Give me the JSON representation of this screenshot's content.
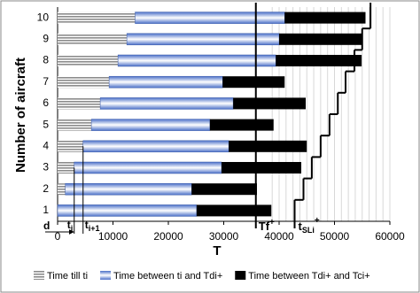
{
  "chart_data": {
    "type": "stacked-barh",
    "ylabel": "Number of aircraft",
    "xlabel": "T",
    "categories": [
      "1",
      "2",
      "3",
      "4",
      "5",
      "6",
      "7",
      "8",
      "9",
      "10"
    ],
    "series": [
      {
        "name": "Time till ti",
        "color": "#9a9a9a",
        "values": [
          0,
          1400,
          3000,
          4600,
          6100,
          7700,
          9300,
          10900,
          12500,
          14000
        ]
      },
      {
        "name": "Time between ti and Tdi+",
        "color": "#5b7fd0",
        "values": [
          25100,
          22800,
          26600,
          26300,
          21400,
          24000,
          20500,
          28500,
          27500,
          27000
        ]
      },
      {
        "name": "Time between Tdi+ and Tci+",
        "color": "#000000",
        "values": [
          13500,
          11800,
          14400,
          14100,
          11500,
          13100,
          11200,
          15500,
          14900,
          14600
        ]
      }
    ],
    "xlim": [
      0,
      60000
    ],
    "xticks": [
      0,
      10000,
      20000,
      30000,
      40000,
      50000,
      60000
    ],
    "tf": {
      "value": 35800,
      "text": "Tf",
      "sup": "+"
    },
    "tsl": {
      "values": [
        42800,
        44400,
        45900,
        47500,
        49100,
        50600,
        52000,
        53600,
        55000,
        56500
      ],
      "text": "t",
      "sub": "SLi",
      "sup": "+"
    },
    "annotations": [
      {
        "text": "d"
      },
      {
        "text": "t",
        "sub": "i"
      },
      {
        "text": "t",
        "sub": "i+1"
      }
    ],
    "legend": "bottom"
  }
}
